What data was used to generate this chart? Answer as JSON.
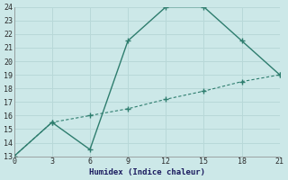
{
  "line1_x": [
    0,
    3,
    6,
    9,
    12,
    15,
    18,
    21
  ],
  "line1_y": [
    13,
    15.5,
    13.5,
    21.5,
    24,
    24,
    21.5,
    19
  ],
  "line2_x": [
    0,
    3,
    6,
    9,
    12,
    15,
    18,
    21
  ],
  "line2_y": [
    13,
    15.5,
    16,
    16.5,
    17.2,
    17.8,
    18.5,
    19
  ],
  "line_color": "#2e7d6e",
  "bg_color": "#cce8e8",
  "grid_color": "#b8d8d8",
  "xlabel": "Humidex (Indice chaleur)",
  "xlim": [
    0,
    21
  ],
  "ylim": [
    13,
    24
  ],
  "xticks": [
    0,
    3,
    6,
    9,
    12,
    15,
    18,
    21
  ],
  "yticks": [
    13,
    14,
    15,
    16,
    17,
    18,
    19,
    20,
    21,
    22,
    23,
    24
  ]
}
